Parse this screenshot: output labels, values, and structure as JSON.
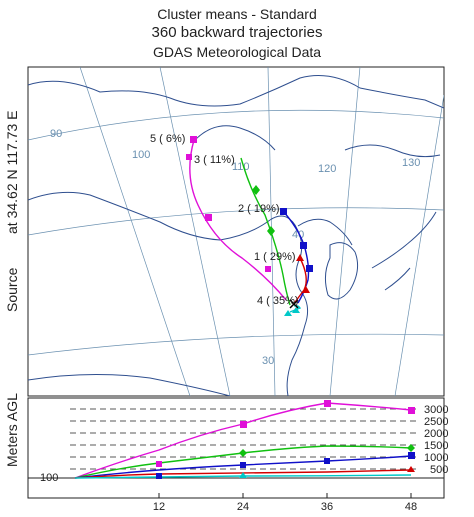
{
  "title": {
    "line1": "Cluster means - Standard",
    "line2": "360 backward trajectories",
    "line3": "GDAS Meteorological Data"
  },
  "source": {
    "label": "Source",
    "location_text": "at   34.62 N  117.73 E"
  },
  "map": {
    "lon_labels": [
      "90",
      "100",
      "110",
      "120",
      "130"
    ],
    "lat_labels": [
      "40",
      "30"
    ],
    "clusters": [
      {
        "label": "1 ( 29%)",
        "color": "#d40000",
        "marker": "triangle"
      },
      {
        "label": "2 ( 19%)",
        "color": "#1010c8",
        "marker": "square"
      },
      {
        "label": "3 ( 11%)",
        "color": "#10c010",
        "marker": "diamond"
      },
      {
        "label": "4 ( 35%)",
        "color": "#00c8c8",
        "marker": "triangle"
      },
      {
        "label": "5 (  6%)",
        "color": "#e010d8",
        "marker": "square"
      }
    ]
  },
  "profile": {
    "ylabel": "Meters AGL",
    "y_min_label": "100",
    "y_ticks": [
      "3000",
      "2500",
      "2000",
      "1500",
      "1000",
      "500"
    ],
    "x_ticks": [
      "12",
      "24",
      "36",
      "48"
    ],
    "series_colors": [
      "#e010d8",
      "#10c010",
      "#1010c8",
      "#d40000",
      "#00c8c8"
    ]
  }
}
